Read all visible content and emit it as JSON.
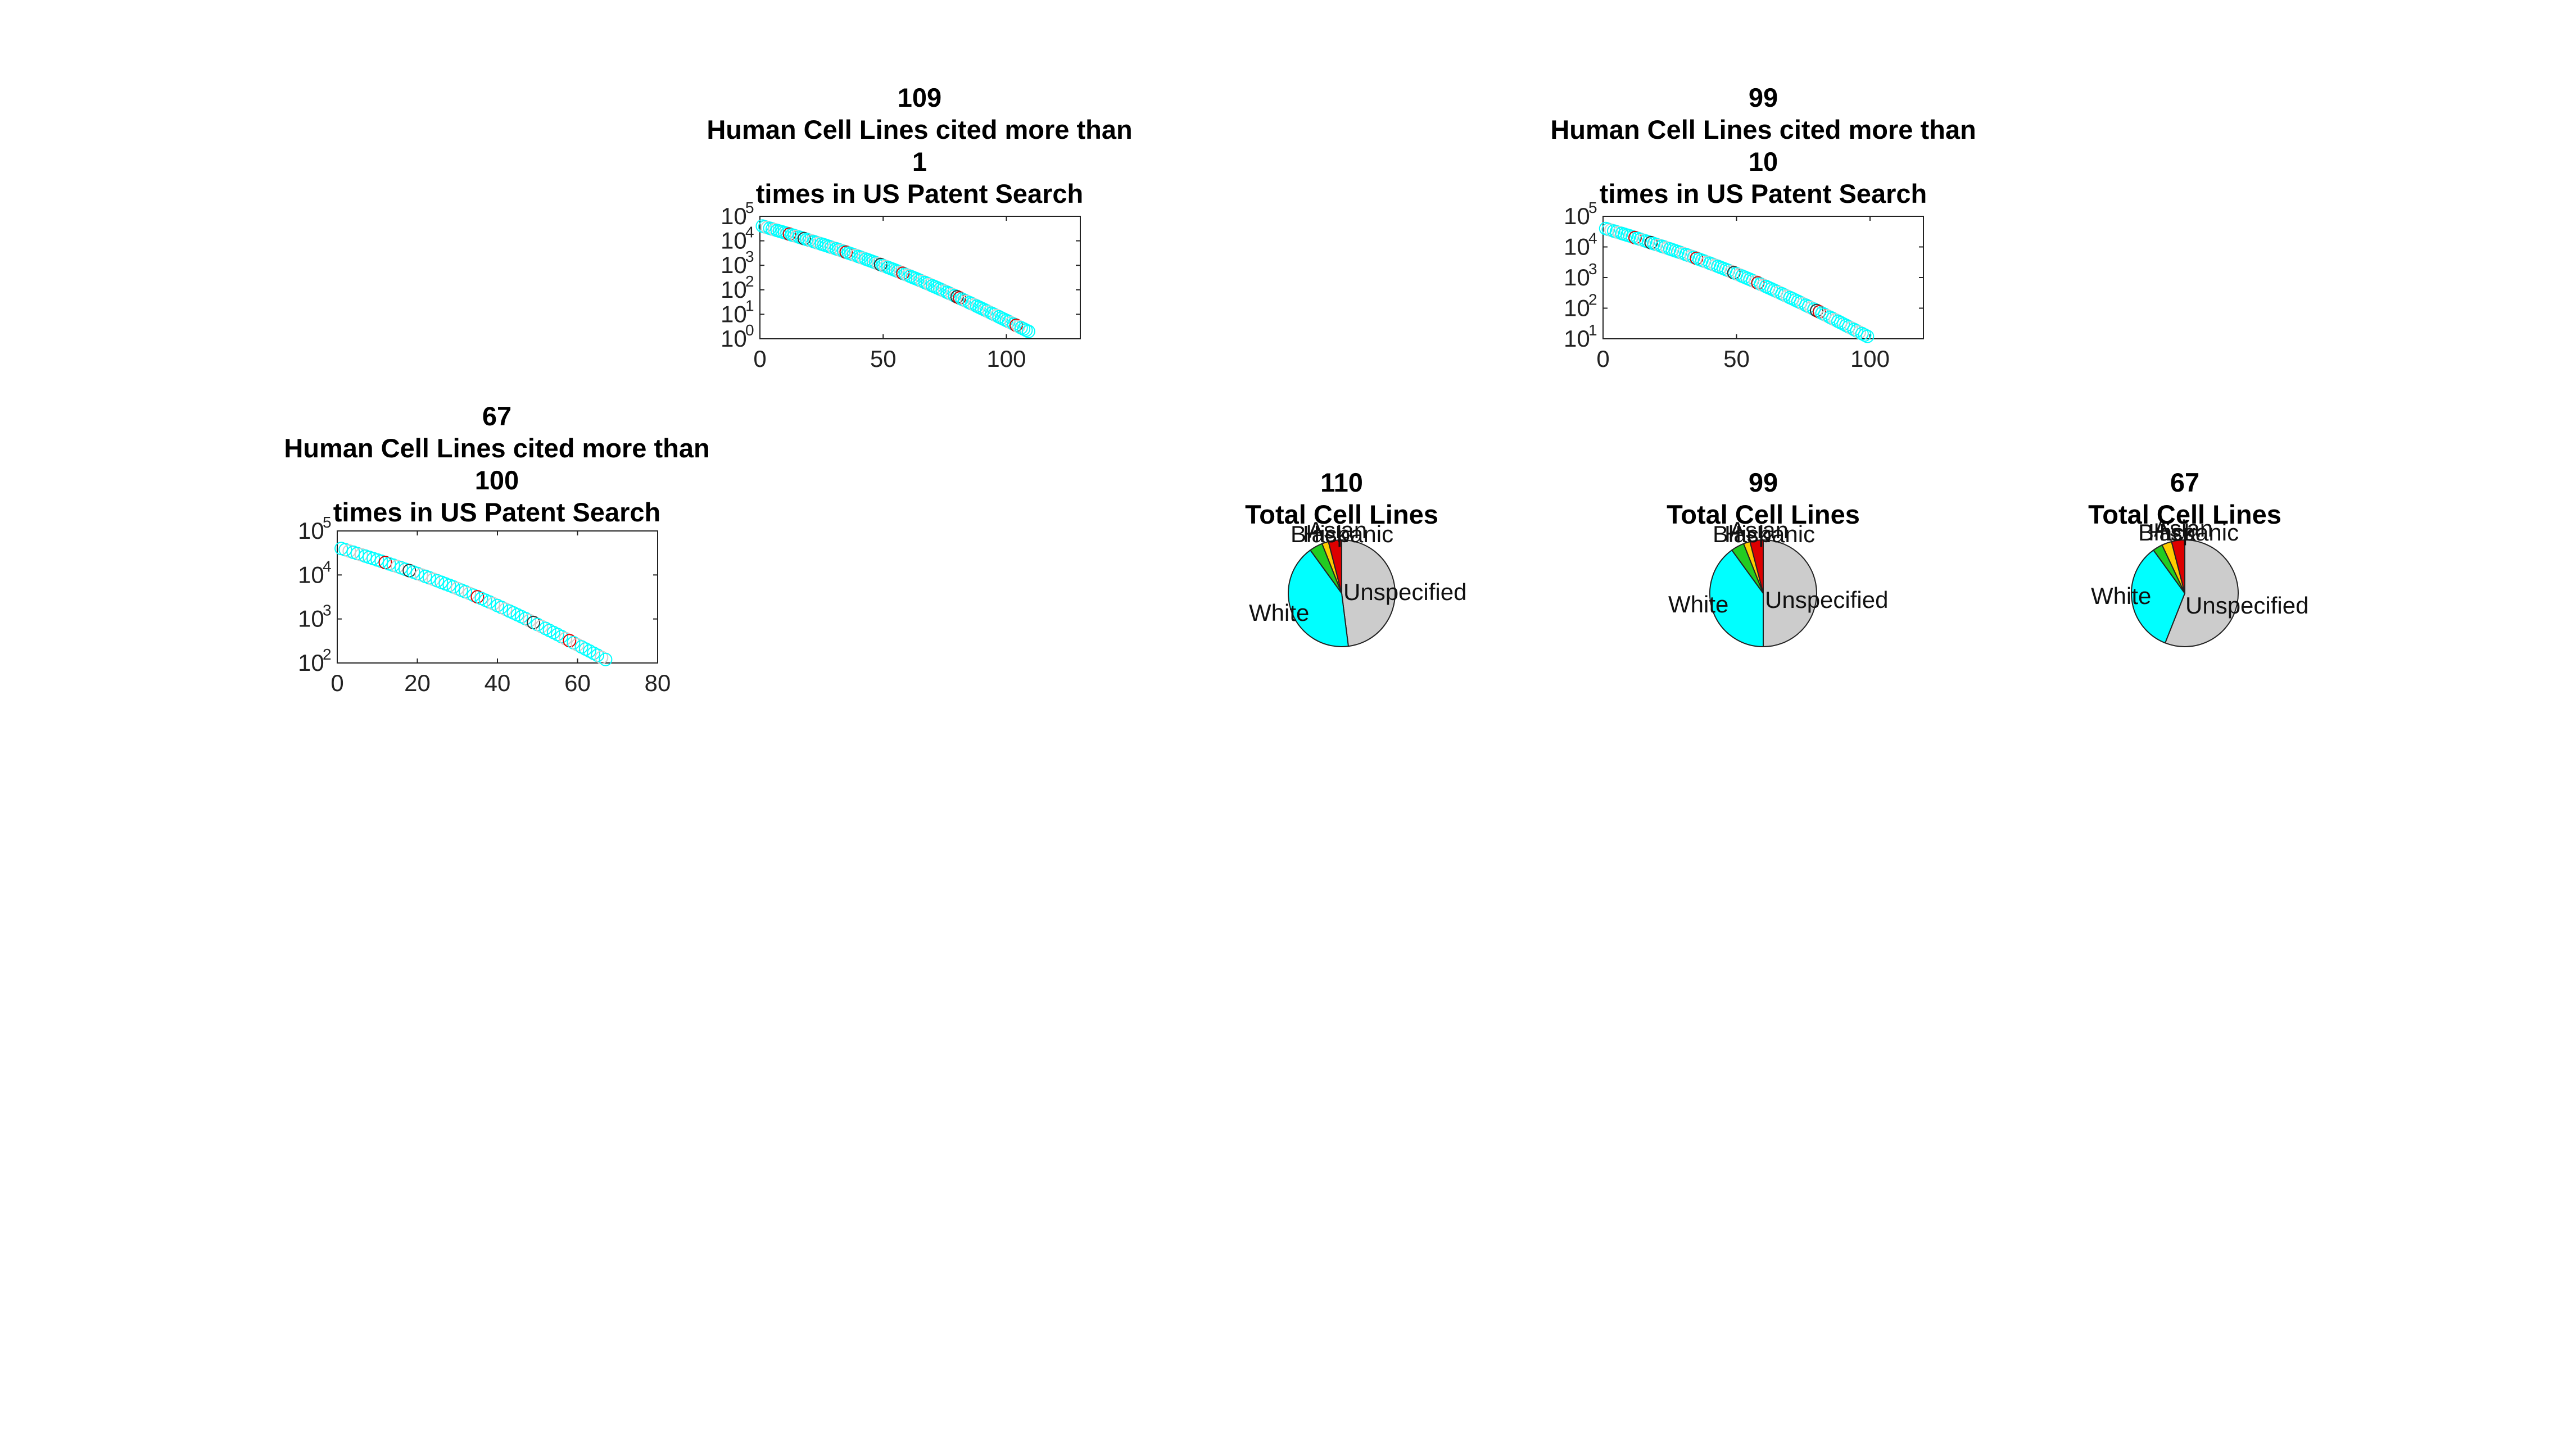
{
  "figure": {
    "background": "#ffffff",
    "colors": {
      "White": "#00ffff",
      "Unspecified": "#cccccc",
      "Black": "#22cc22",
      "Asian": "#dd0000",
      "Hispanic": "#ffcc00"
    }
  },
  "chart_data": [
    {
      "id": "scatter_gt1",
      "type": "scatter",
      "title": [
        "109",
        "Human Cell Lines cited more than",
        "1",
        "times in US Patent Search"
      ],
      "xlabel": "",
      "ylabel": "",
      "yscale": "log",
      "xlim": [
        0,
        130
      ],
      "ylim": [
        1,
        100000
      ],
      "xticks": [
        0,
        50,
        100
      ],
      "yticks": [
        1,
        10,
        100,
        1000,
        10000,
        100000
      ],
      "ytick_labels": [
        {
          "base": "10",
          "exp": "0"
        },
        {
          "base": "10",
          "exp": "1"
        },
        {
          "base": "10",
          "exp": "2"
        },
        {
          "base": "10",
          "exp": "3"
        },
        {
          "base": "10",
          "exp": "4"
        },
        {
          "base": "10",
          "exp": "5"
        }
      ],
      "n_points": 109,
      "y_start": 40000,
      "y_end": 2,
      "marker": "open-circle",
      "series": [
        {
          "name": "",
          "colors": [
            "#00ffff",
            "#cccccc",
            "#00ffff",
            "#dd0000",
            "#cccccc"
          ]
        }
      ]
    },
    {
      "id": "scatter_gt10",
      "type": "scatter",
      "title": [
        "99",
        "Human Cell Lines cited more than",
        "10",
        "times in US Patent Search"
      ],
      "xlabel": "",
      "ylabel": "",
      "yscale": "log",
      "xlim": [
        0,
        120
      ],
      "ylim": [
        10,
        100000
      ],
      "xticks": [
        0,
        50,
        100
      ],
      "yticks": [
        10,
        100,
        1000,
        10000,
        100000
      ],
      "ytick_labels": [
        {
          "base": "10",
          "exp": "1"
        },
        {
          "base": "10",
          "exp": "2"
        },
        {
          "base": "10",
          "exp": "3"
        },
        {
          "base": "10",
          "exp": "4"
        },
        {
          "base": "10",
          "exp": "5"
        }
      ],
      "n_points": 99,
      "y_start": 40000,
      "y_end": 12,
      "marker": "open-circle",
      "series": [
        {
          "name": "",
          "colors": [
            "#00ffff",
            "#cccccc",
            "#00ffff",
            "#dd0000",
            "#cccccc"
          ]
        }
      ]
    },
    {
      "id": "scatter_gt100",
      "type": "scatter",
      "title": [
        "67",
        "Human Cell Lines cited more than",
        "100",
        "times in US Patent Search"
      ],
      "xlabel": "",
      "ylabel": "",
      "yscale": "log",
      "xlim": [
        0,
        80
      ],
      "ylim": [
        100,
        100000
      ],
      "xticks": [
        0,
        20,
        40,
        60,
        80
      ],
      "yticks": [
        100,
        1000,
        10000,
        100000
      ],
      "ytick_labels": [
        {
          "base": "10",
          "exp": "2"
        },
        {
          "base": "10",
          "exp": "3"
        },
        {
          "base": "10",
          "exp": "4"
        },
        {
          "base": "10",
          "exp": "5"
        }
      ],
      "n_points": 67,
      "y_start": 40000,
      "y_end": 120,
      "marker": "open-circle",
      "series": [
        {
          "name": "",
          "colors": [
            "#00ffff",
            "#cccccc",
            "#00ffff",
            "#dd0000",
            "#cccccc"
          ]
        }
      ]
    },
    {
      "id": "pie_110",
      "type": "pie",
      "title": [
        "110",
        "Total Cell Lines"
      ],
      "labels": [
        "Unspecified",
        "White",
        "Black",
        "Hispanic",
        "Asian"
      ],
      "values": [
        48,
        42,
        4,
        2,
        4
      ]
    },
    {
      "id": "pie_99",
      "type": "pie",
      "title": [
        "99",
        "Total Cell Lines"
      ],
      "labels": [
        "Unspecified",
        "White",
        "Black",
        "Hispanic",
        "Asian"
      ],
      "values": [
        50,
        40,
        4,
        2,
        4
      ]
    },
    {
      "id": "pie_67",
      "type": "pie",
      "title": [
        "67",
        "Total Cell Lines"
      ],
      "labels": [
        "Unspecified",
        "White",
        "Black",
        "Hispanic",
        "Asian"
      ],
      "values": [
        56,
        34,
        3,
        3,
        4
      ]
    }
  ]
}
